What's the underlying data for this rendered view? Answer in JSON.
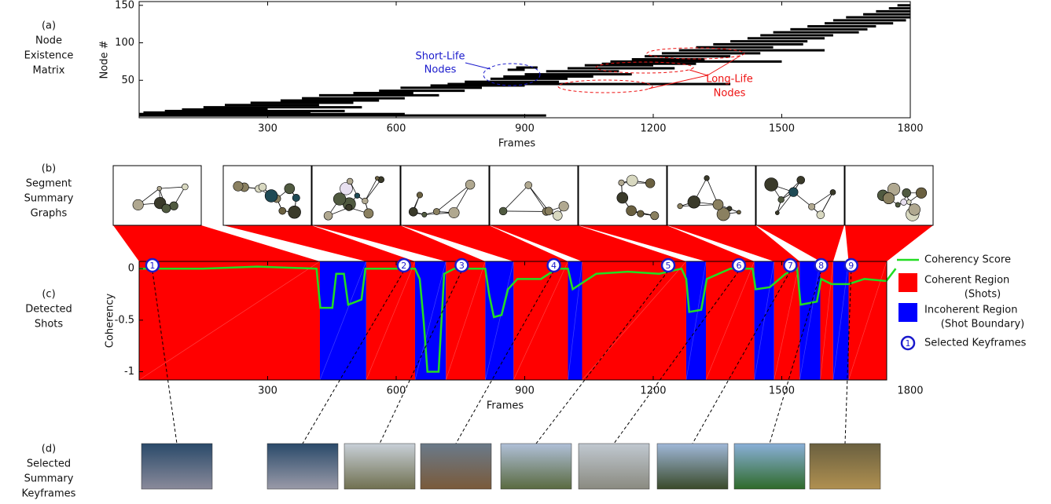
{
  "panels": [
    {
      "label": "(a)",
      "lines": [
        "Node",
        "Existence",
        "Matrix"
      ]
    },
    {
      "label": "(b)",
      "lines": [
        "Segment",
        "Summary",
        "Graphs"
      ]
    },
    {
      "label": "(c)",
      "lines": [
        "Detected",
        "Shots"
      ]
    },
    {
      "label": "(d)",
      "lines": [
        "Selected",
        "Summary",
        "Keyframes"
      ]
    }
  ],
  "chart_data": [
    {
      "type": "lifespan",
      "xlabel": "Frames",
      "ylabel": "Node #",
      "xlim": [
        0,
        1800
      ],
      "ylim": [
        0,
        155
      ],
      "xticks": [
        300,
        600,
        900,
        1200,
        1500,
        1800
      ],
      "yticks": [
        50,
        100,
        150
      ],
      "color": "#000000",
      "nodes": {
        "y": [
          3,
          5,
          7,
          9,
          11,
          14,
          17,
          20,
          23,
          26,
          30,
          33,
          36,
          40,
          43,
          45,
          48,
          52,
          55,
          58,
          62,
          64,
          66,
          67,
          70,
          72,
          75,
          78,
          82,
          86,
          90,
          94,
          98,
          102,
          106,
          110,
          114,
          118,
          122,
          126,
          130,
          134,
          138,
          142,
          146,
          150
        ],
        "start": [
          0,
          0,
          10,
          60,
          100,
          150,
          200,
          260,
          330,
          380,
          420,
          500,
          560,
          610,
          680,
          720,
          760,
          820,
          850,
          900,
          950,
          860,
          1000,
          880,
          1040,
          1080,
          1100,
          1150,
          1180,
          1220,
          1260,
          1300,
          1340,
          1380,
          1420,
          1450,
          1480,
          1520,
          1560,
          1600,
          1620,
          1650,
          1690,
          1720,
          1750,
          1770
        ],
        "end": [
          950,
          620,
          400,
          480,
          300,
          520,
          420,
          500,
          560,
          620,
          700,
          640,
          760,
          800,
          900,
          1380,
          980,
          1000,
          1060,
          1150,
          1120,
          900,
          1250,
          930,
          1200,
          1300,
          1500,
          1320,
          1380,
          1450,
          1600,
          1480,
          1550,
          1560,
          1600,
          1620,
          1680,
          1700,
          1720,
          1760,
          1790,
          1800,
          1800,
          1800,
          1800,
          1800
        ]
      },
      "annotations": [
        {
          "text": [
            "Short-Life",
            "Nodes"
          ],
          "color": "#1a1acc"
        },
        {
          "text": [
            "Long-Life",
            "Nodes"
          ],
          "color": "#ee1111"
        }
      ]
    },
    {
      "type": "coherency",
      "xlabel": "Frames",
      "ylabel": "Coherency",
      "xlim": [
        0,
        1745
      ],
      "ylim": [
        -1.08,
        0.07
      ],
      "xticks": [
        300,
        600,
        900,
        1200,
        1500,
        1800
      ],
      "yticks": [
        -1,
        -0.5,
        0
      ],
      "series": [
        {
          "name": "Coherency Score",
          "color": "#22dd22",
          "x": [
            0,
            147,
            276,
            414,
            423,
            451,
            460,
            478,
            488,
            519,
            528,
            644,
            655,
            664,
            673,
            699,
            712,
            736,
            808,
            817,
            828,
            846,
            861,
            883,
            938,
            975,
            1001,
            1012,
            1030,
            1067,
            1141,
            1214,
            1266,
            1277,
            1284,
            1312,
            1325,
            1380,
            1432,
            1439,
            1472,
            1509,
            1536,
            1544,
            1582,
            1592,
            1616,
            1656,
            1693,
            1744,
            1766
          ],
          "values": [
            0,
            0,
            0.02,
            0,
            -0.38,
            -0.38,
            -0.05,
            -0.05,
            -0.35,
            -0.3,
            0,
            0,
            -0.1,
            -0.5,
            -1,
            -1,
            -0.05,
            0,
            0,
            -0.25,
            -0.47,
            -0.45,
            -0.2,
            -0.1,
            -0.1,
            0,
            0,
            -0.2,
            -0.15,
            -0.05,
            -0.03,
            -0.05,
            0,
            -0.1,
            -0.42,
            -0.4,
            -0.1,
            0,
            0,
            -0.2,
            -0.18,
            -0.05,
            0,
            -0.35,
            -0.32,
            -0.1,
            -0.15,
            -0.15,
            -0.1,
            -0.12,
            0
          ]
        }
      ],
      "regions": [
        {
          "label_lines": [
            "Coherent Region",
            "(Shots)"
          ],
          "color": "#ff0000",
          "spans": [
            [
              0,
              422
            ],
            [
              530,
              644
            ],
            [
              716,
              808
            ],
            [
              874,
              1001
            ],
            [
              1034,
              1277
            ],
            [
              1323,
              1436
            ],
            [
              1482,
              1542
            ],
            [
              1590,
              1620
            ],
            [
              1656,
              1745
            ]
          ]
        },
        {
          "label_lines": [
            "Incoherent Region",
            "(Shot Boundary)"
          ],
          "color": "#0000ff",
          "spans": [
            [
              422,
              530
            ],
            [
              644,
              716
            ],
            [
              808,
              874
            ],
            [
              1001,
              1034
            ],
            [
              1277,
              1323
            ],
            [
              1436,
              1482
            ],
            [
              1542,
              1590
            ],
            [
              1620,
              1656
            ]
          ]
        }
      ],
      "keyframes": {
        "name": "Selected Keyframes",
        "color": "#1a1acc",
        "x": [
          31,
          618,
          753,
          968,
          1235,
          1400,
          1520,
          1592,
          1662
        ],
        "labels": [
          1,
          2,
          3,
          4,
          5,
          6,
          7,
          8,
          9
        ]
      }
    }
  ]
}
